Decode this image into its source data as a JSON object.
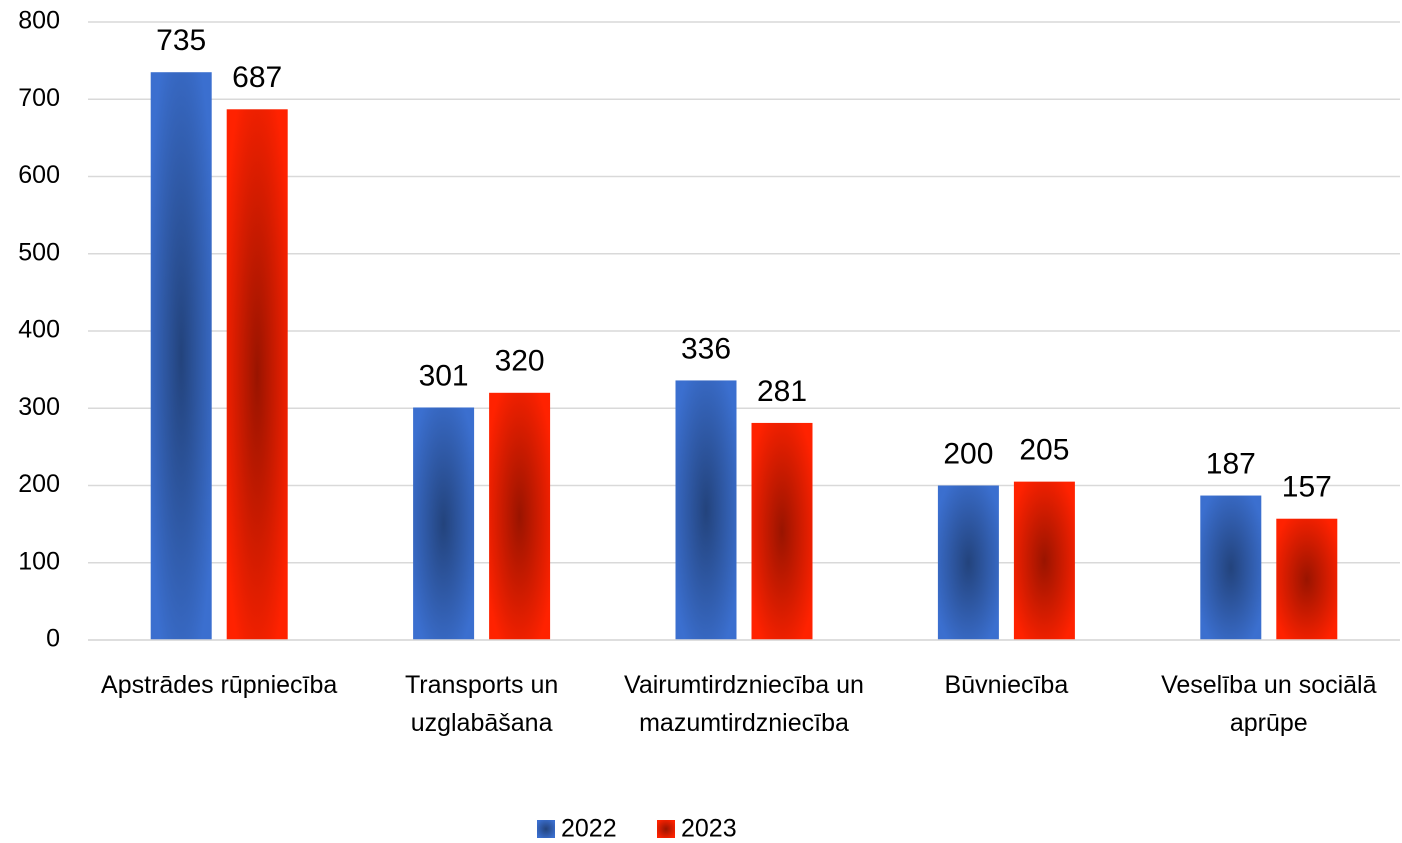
{
  "chart_data": {
    "type": "bar",
    "categories": [
      "Apstrādes rūpniecība",
      "Transports un uzglabāšana",
      "Vairumtirdzniecība un mazumtirdzniecība",
      "Būvniecība",
      "Veselība un sociālā aprūpe"
    ],
    "series": [
      {
        "name": "2022",
        "color": "#3b6fcf",
        "values": [
          735,
          301,
          336,
          200,
          187
        ]
      },
      {
        "name": "2023",
        "color": "#ff2200",
        "values": [
          687,
          320,
          281,
          205,
          157
        ]
      }
    ],
    "ylim": [
      0,
      800
    ],
    "yticks": [
      0,
      100,
      200,
      300,
      400,
      500,
      600,
      700,
      800
    ],
    "grid": true,
    "legend": "bottom"
  }
}
